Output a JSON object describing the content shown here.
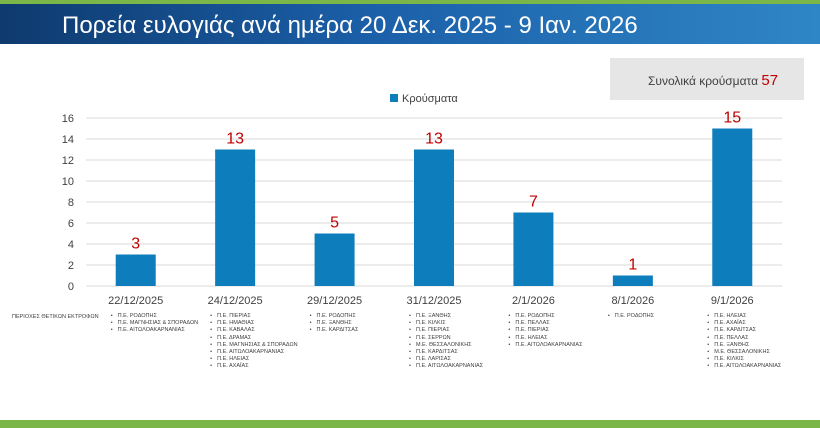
{
  "header": {
    "title": "Πορεία ευλογιάς ανά ημέρα 20 Δεκ. 2025 - 9 Ιαν. 2026"
  },
  "summary": {
    "label": "Συνολικά κρούσματα",
    "value": "57"
  },
  "colors": {
    "bar": "#0e7dbb",
    "value_label": "#c00000",
    "header": "#1b5fa8",
    "accent": "#7ab648"
  },
  "chart_data": {
    "type": "bar",
    "categories": [
      "22/12/2025",
      "24/12/2025",
      "29/12/2025",
      "31/12/2025",
      "2/1/2026",
      "8/1/2026",
      "9/1/2026"
    ],
    "series": [
      {
        "name": "Κρούσματα",
        "values": [
          3,
          13,
          5,
          13,
          7,
          1,
          15
        ]
      }
    ],
    "data_labels": [
      "3",
      "13",
      "5",
      "13",
      "7",
      "1",
      "15"
    ],
    "yticks": [
      "0",
      "2",
      "4",
      "6",
      "8",
      "10",
      "12",
      "14",
      "16"
    ],
    "ylim": [
      0,
      16
    ],
    "grid": true,
    "legend": "top-center"
  },
  "footnote": {
    "label": "ΠΕΡΙΟΧΕΣ ΘΕΤΙΚΩΝ ΕΚΤΡΟΦΩΝ",
    "regions": [
      [
        "Π.Ε. ΡΟΔΟΠΗΣ",
        "Π.Ε. ΜΑΓΝΗΣΙΑΣ & ΣΠΟΡΑΔΩΝ",
        "Π.Ε. ΑΙΤΩΛΟΑΚΑΡΝΑΝΙΑΣ"
      ],
      [
        "Π.Ε. ΠΙΕΡΙΑΣ",
        "Π.Ε. ΗΜΑΘΙΑΣ",
        "Π.Ε. ΚΑΒΑΛΑΣ",
        "Π.Ε. ΔΡΑΜΑΣ",
        "Π.Ε. ΜΑΓΝΗΣΙΑΣ & ΣΠΟΡΑΔΩΝ",
        "Π.Ε. ΑΙΤΩΛΟΑΚΑΡΝΑΝΙΑΣ",
        "Π.Ε. ΗΛΕΙΑΣ",
        "Π.Ε. ΑΧΑΪΑΣ"
      ],
      [
        "Π.Ε. ΡΟΔΟΠΗΣ",
        "Π.Ε. ΞΑΝΘΗΣ",
        "Π.Ε. ΚΑΡΔΙΤΣΑΣ"
      ],
      [
        "Π.Ε. ΞΑΝΘΗΣ",
        "Π.Ε. ΚΙΛΚΙΣ",
        "Π.Ε. ΠΙΕΡΙΑΣ",
        "Π.Ε. ΣΕΡΡΩΝ",
        "Μ.Ε. ΘΕΣΣΑΛΟΝΙΚΗΣ",
        "Π.Ε. ΚΑΡΔΙΤΣΑΣ",
        "Π.Ε. ΛΑΡΙΣΑΣ",
        "Π.Ε. ΑΙΤΩΛΟΑΚΑΡΝΑΝΙΑΣ"
      ],
      [
        "Π.Ε. ΡΟΔΟΠΗΣ",
        "Π.Ε. ΠΕΛΛΑΣ",
        "Π.Ε. ΠΙΕΡΙΑΣ",
        "Π.Ε. ΗΛΕΙΑΣ",
        "Π.Ε. ΑΙΤΩΛΟΑΚΑΡΝΑΝΙΑΣ"
      ],
      [
        "Π.Ε. ΡΟΔΟΠΗΣ"
      ],
      [
        "Π.Ε. ΗΛΕΙΑΣ",
        "Π.Ε. ΑΧΑΪΑΣ",
        "Π.Ε. ΚΑΡΔΙΤΣΑΣ",
        "Π.Ε. ΠΕΛΛΑΣ",
        "Π.Ε. ΞΑΝΘΗΣ",
        "Μ.Ε. ΘΕΣΣΑΛΟΝΙΚΗΣ",
        "Π.Ε. ΚΙΛΚΙΣ",
        "Π.Ε. ΑΙΤΩΛΟΑΚΑΡΝΑΝΙΑΣ"
      ]
    ]
  }
}
